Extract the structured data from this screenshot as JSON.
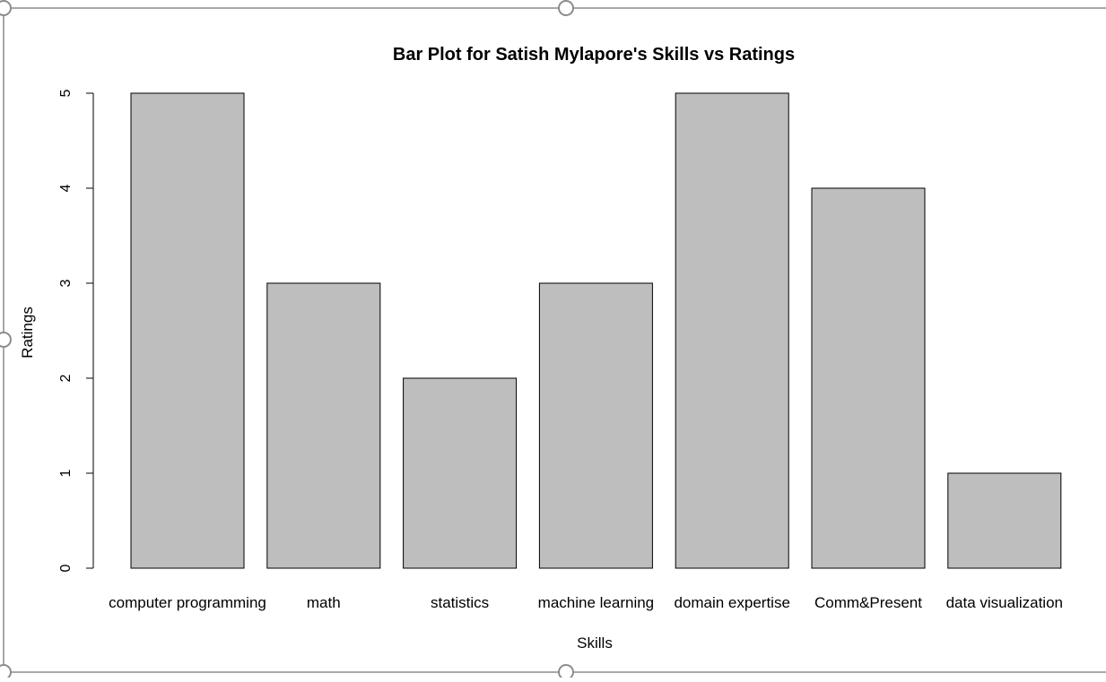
{
  "chart_data": {
    "type": "bar",
    "title": "Bar Plot for Satish Mylapore's Skills vs Ratings",
    "xlabel": "Skills",
    "ylabel": "Ratings",
    "categories": [
      "computer programming",
      "math",
      "statistics",
      "machine learning",
      "domain expertise",
      "Comm&Present",
      "data visualization"
    ],
    "values": [
      5,
      3,
      2,
      3,
      5,
      4,
      1
    ],
    "ylim": [
      0,
      5
    ],
    "yticks": [
      "0",
      "1",
      "2",
      "3",
      "4",
      "5"
    ],
    "grid": false,
    "bar_color": "#bebebe",
    "border_color": "#000000"
  }
}
